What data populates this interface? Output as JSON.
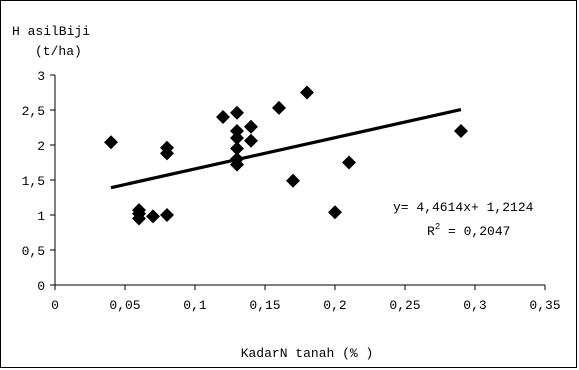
{
  "chart_data": {
    "type": "scatter",
    "title": "",
    "ylabel_line1": "H asilBiji",
    "ylabel_line2": "(t/ha)",
    "xlabel": "KadarN tanah (% )",
    "xlim": [
      0,
      0.35
    ],
    "ylim": [
      0,
      3
    ],
    "x_ticks": [
      "0",
      "0,05",
      "0,1",
      "0,15",
      "0,2",
      "0,25",
      "0,3",
      "0,35"
    ],
    "y_ticks": [
      "0",
      "0,5",
      "1",
      "1,5",
      "2",
      "2,5",
      "3"
    ],
    "x_tick_values": [
      0,
      0.05,
      0.1,
      0.15,
      0.2,
      0.25,
      0.3,
      0.35
    ],
    "y_tick_values": [
      0,
      0.5,
      1,
      1.5,
      2,
      2.5,
      3
    ],
    "grid": false,
    "legend": "none",
    "marker": "diamond",
    "points": [
      {
        "x": 0.04,
        "y": 2.04
      },
      {
        "x": 0.06,
        "y": 1.07
      },
      {
        "x": 0.06,
        "y": 1.02
      },
      {
        "x": 0.06,
        "y": 0.95
      },
      {
        "x": 0.07,
        "y": 0.98
      },
      {
        "x": 0.08,
        "y": 1.0
      },
      {
        "x": 0.08,
        "y": 1.96
      },
      {
        "x": 0.08,
        "y": 1.88
      },
      {
        "x": 0.12,
        "y": 2.4
      },
      {
        "x": 0.13,
        "y": 2.46
      },
      {
        "x": 0.13,
        "y": 2.2
      },
      {
        "x": 0.13,
        "y": 2.1
      },
      {
        "x": 0.13,
        "y": 1.95
      },
      {
        "x": 0.13,
        "y": 1.8
      },
      {
        "x": 0.13,
        "y": 1.72
      },
      {
        "x": 0.14,
        "y": 2.26
      },
      {
        "x": 0.14,
        "y": 2.06
      },
      {
        "x": 0.16,
        "y": 2.53
      },
      {
        "x": 0.17,
        "y": 1.49
      },
      {
        "x": 0.18,
        "y": 2.75
      },
      {
        "x": 0.2,
        "y": 1.04
      },
      {
        "x": 0.21,
        "y": 1.75
      },
      {
        "x": 0.29,
        "y": 2.2
      }
    ],
    "trendline": {
      "slope": 4.4614,
      "intercept": 1.2124,
      "x_start": 0.04,
      "x_end": 0.29
    },
    "annotations": {
      "equation": "y= 4,4614x+ 1,2124",
      "r2_prefix": "R",
      "r2_sup": "2",
      "r2_value": " = 0,2047"
    }
  }
}
